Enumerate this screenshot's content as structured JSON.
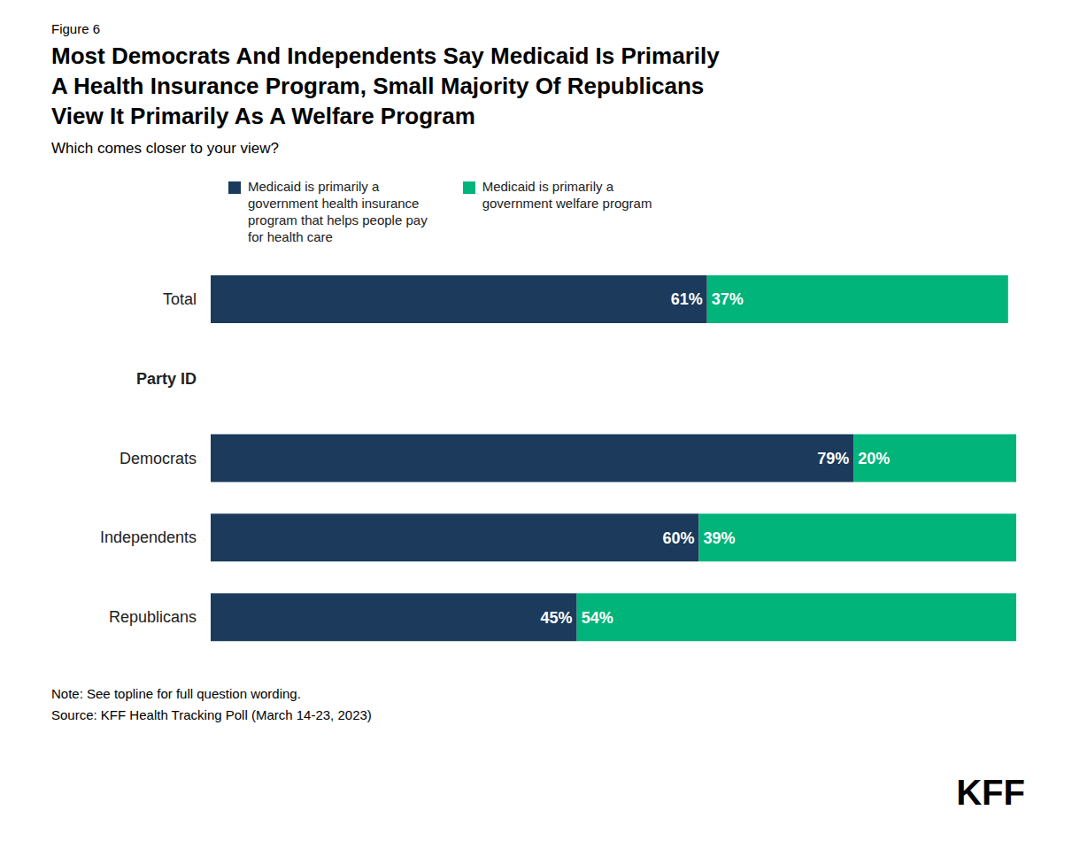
{
  "chart_data": {
    "type": "bar",
    "orientation": "horizontal",
    "stacked": true,
    "data_labels": true,
    "grid": false,
    "legend": "top",
    "tick_labels": "y",
    "title": "Most Democrats And Independents Say Medicaid Is Primarily\nA Health Insurance Program, Small Majority Of Republicans\nView It Primarily As A Welfare Program",
    "subtitle": "Which comes closer to your view?",
    "annotations": [
      "Figure 6",
      "Note: See topline for full question wording.",
      "Source: KFF Health Tracking Poll (March 14-23, 2023)",
      "KFF"
    ],
    "categories": [
      "Total",
      "Party ID",
      "Democrats",
      "Independents",
      "Republicans"
    ],
    "series": [
      {
        "name": "Medicaid is primarily a\ngovernment health insurance\nprogram that helps people pay\nfor health care",
        "color": "#1b3a5c",
        "values": [
          61,
          null,
          79,
          60,
          45
        ],
        "value_labels": [
          "61%",
          null,
          "79%",
          "60%",
          "45%"
        ]
      },
      {
        "name": "Medicaid is primarily a\ngovernment welfare program",
        "color": "#00b47a",
        "values": [
          37,
          null,
          20,
          39,
          54
        ],
        "value_labels": [
          "37%",
          null,
          "20%",
          "39%",
          "54%"
        ]
      }
    ]
  }
}
